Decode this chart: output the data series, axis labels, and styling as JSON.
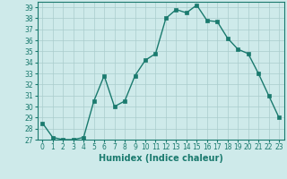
{
  "x": [
    0,
    1,
    2,
    3,
    4,
    5,
    6,
    7,
    8,
    9,
    10,
    11,
    12,
    13,
    14,
    15,
    16,
    17,
    18,
    19,
    20,
    21,
    22,
    23
  ],
  "y": [
    28.5,
    27.2,
    27.0,
    27.0,
    27.2,
    30.5,
    32.8,
    30.0,
    30.5,
    32.8,
    34.2,
    34.8,
    38.0,
    38.8,
    38.5,
    39.2,
    37.8,
    37.7,
    36.2,
    35.2,
    34.8,
    33.0,
    31.0,
    29.0
  ],
  "line_color": "#1a7a6e",
  "marker": "s",
  "markersize": 2.2,
  "linewidth": 1.0,
  "bg_color": "#ceeaea",
  "grid_color": "#aacccc",
  "xlabel": "Humidex (Indice chaleur)",
  "ylim": [
    27,
    39.5
  ],
  "yticks": [
    27,
    28,
    29,
    30,
    31,
    32,
    33,
    34,
    35,
    36,
    37,
    38,
    39
  ],
  "xticks": [
    0,
    1,
    2,
    3,
    4,
    5,
    6,
    7,
    8,
    9,
    10,
    11,
    12,
    13,
    14,
    15,
    16,
    17,
    18,
    19,
    20,
    21,
    22,
    23
  ],
  "xtick_labels": [
    "0",
    "1",
    "2",
    "3",
    "4",
    "5",
    "6",
    "7",
    "8",
    "9",
    "10",
    "11",
    "12",
    "13",
    "14",
    "15",
    "16",
    "17",
    "18",
    "19",
    "20",
    "21",
    "22",
    "23"
  ],
  "tick_fontsize": 5.5,
  "xlabel_fontsize": 7.0
}
